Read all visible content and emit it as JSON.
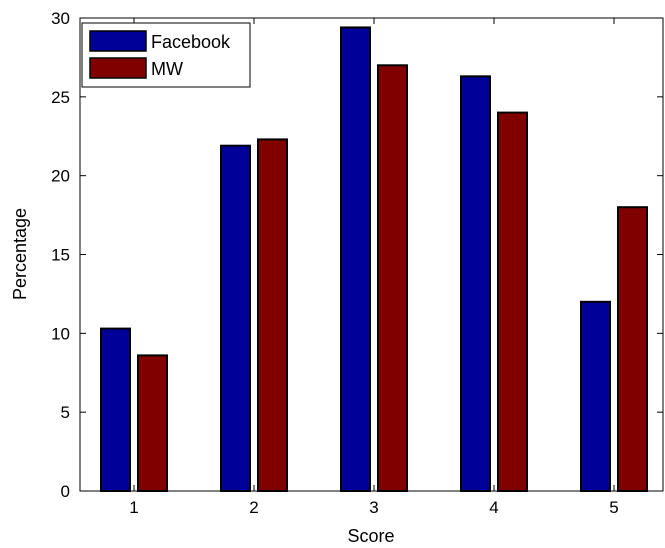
{
  "chart_data": {
    "type": "bar",
    "categories": [
      "1",
      "2",
      "3",
      "4",
      "5"
    ],
    "series": [
      {
        "name": "Facebook",
        "values": [
          10.3,
          21.9,
          29.4,
          26.3,
          12.0
        ]
      },
      {
        "name": "MW",
        "values": [
          8.6,
          22.3,
          27.0,
          24.0,
          18.0
        ]
      }
    ],
    "xlabel": "Score",
    "ylabel": "Percentage",
    "ylim": [
      0,
      30
    ],
    "yticks": [
      0,
      5,
      10,
      15,
      20,
      25,
      30
    ],
    "grid": false,
    "legend_position": "top-left",
    "colors": {
      "Facebook": "#000099",
      "MW": "#800000"
    }
  }
}
